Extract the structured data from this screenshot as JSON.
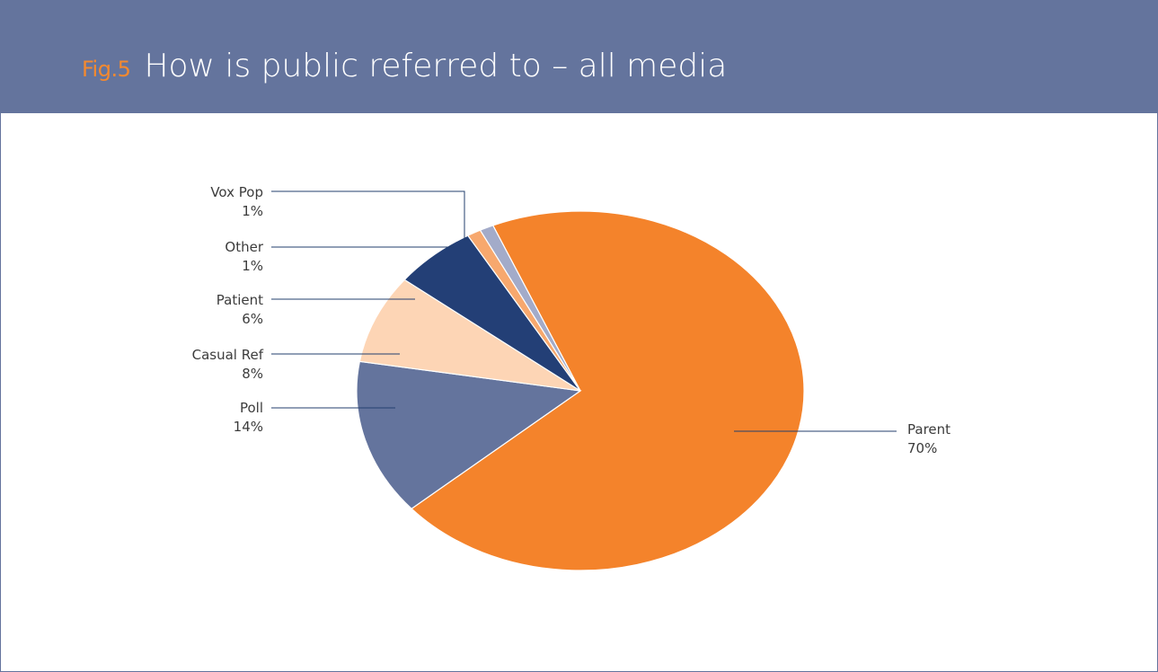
{
  "header": {
    "fig_label": "Fig.5",
    "title": "How is public referred to – all media"
  },
  "colors": {
    "header_bg": "#64749d",
    "fig_label": "#f4892f",
    "leader_line": "#233f6e"
  },
  "chart_data": {
    "type": "pie",
    "title": "How is public referred to – all media",
    "slices": [
      {
        "label": "Parent",
        "value_label": "70%",
        "value": 70,
        "color": "#f4832b"
      },
      {
        "label": "Poll",
        "value_label": "14%",
        "value": 14,
        "color": "#64749d"
      },
      {
        "label": "Casual Ref",
        "value_label": "8%",
        "value": 8,
        "color": "#fdd5b5"
      },
      {
        "label": "Patient",
        "value_label": "6%",
        "value": 6,
        "color": "#233f76"
      },
      {
        "label": "Other",
        "value_label": "1%",
        "value": 1,
        "color": "#f7a86e"
      },
      {
        "label": "Vox Pop",
        "value_label": "1%",
        "value": 1,
        "color": "#a3abc9"
      }
    ]
  }
}
